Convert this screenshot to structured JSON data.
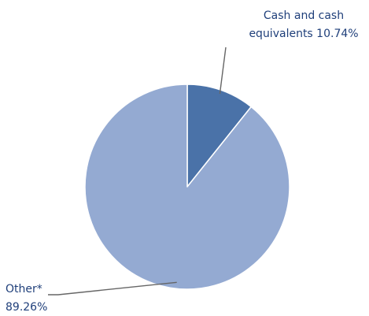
{
  "chart_data": {
    "type": "pie",
    "title": "",
    "slices": [
      {
        "label_lines": [
          "Cash and cash",
          "equivalents 10.74%"
        ],
        "name": "Cash and cash equivalents",
        "value": 10.74,
        "color": "#4a72a8"
      },
      {
        "label_lines": [
          "Other*",
          "89.26%"
        ],
        "name": "Other*",
        "value": 89.26,
        "color": "#94aad2"
      }
    ],
    "legend": "none",
    "leader_line_color": "#666666",
    "label_color": "#1f3f7a"
  }
}
